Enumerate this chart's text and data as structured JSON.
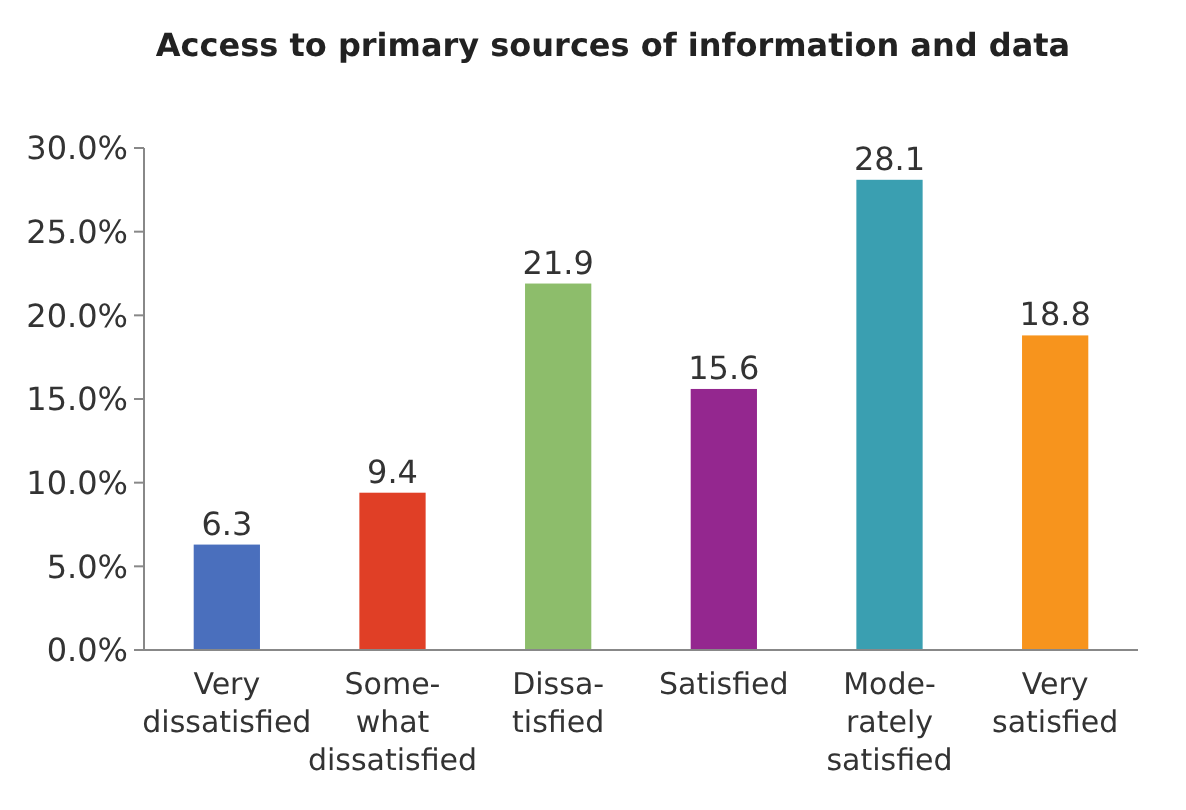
{
  "chart_data": {
    "type": "bar",
    "title": "Access to primary sources of information and data",
    "categories": [
      "Very\ndissatisfied",
      "Some-\nwhat\ndissatisfied",
      "Dissa-\ntisfied",
      "Satisfied",
      "Mode-\nrately\nsatisfied",
      "Very\nsatisfied"
    ],
    "values": [
      6.3,
      9.4,
      21.9,
      15.6,
      28.1,
      18.8
    ],
    "colors": [
      "#4a6fbd",
      "#e03f26",
      "#8dbd6b",
      "#94278f",
      "#3a9fb1",
      "#f7941d"
    ],
    "ylim": [
      0,
      30
    ],
    "yticks": [
      {
        "value": 0,
        "label": "0.0%"
      },
      {
        "value": 5,
        "label": "5.0%"
      },
      {
        "value": 10,
        "label": "10.0%"
      },
      {
        "value": 15,
        "label": "15.0%"
      },
      {
        "value": 20,
        "label": "20.0%"
      },
      {
        "value": 25,
        "label": "25.0%"
      },
      {
        "value": 30,
        "label": "30.0%"
      }
    ],
    "data_labels": true
  }
}
